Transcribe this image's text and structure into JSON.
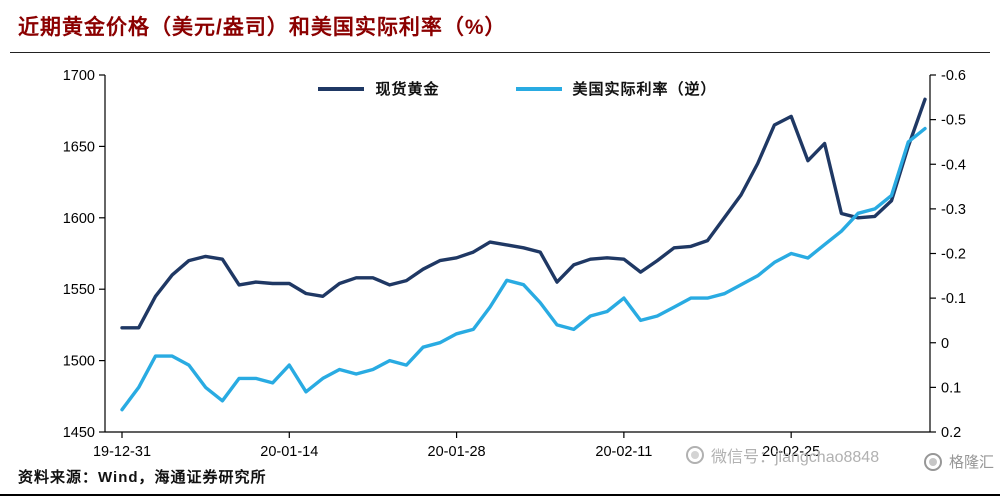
{
  "page": {
    "title": "近期黄金价格（美元/盎司）和美国实际利率（%）",
    "source": "资料来源：Wind，海通证券研究所"
  },
  "watermark": {
    "wechat_label": "微信号：jiangchao8848",
    "brand_label": "格隆汇"
  },
  "colors": {
    "title": "#8b0000",
    "gold_line": "#1f3864",
    "rate_line": "#29abe2",
    "axis": "#000000",
    "watermark": "#b1b1b1"
  },
  "chart_data": {
    "type": "line",
    "title": "近期黄金价格（美元/盎司）和美国实际利率（%）",
    "grid": false,
    "legend_position": "top-center",
    "x_axis": {
      "tick_labels": [
        "19-12-31",
        "20-01-14",
        "20-01-28",
        "20-02-11",
        "20-02-25"
      ],
      "tick_indices": [
        0,
        10,
        20,
        30,
        40
      ]
    },
    "y_left": {
      "min": 1450,
      "max": 1700,
      "tick_labels": [
        "1700",
        "1650",
        "1600",
        "1550",
        "1500",
        "1450"
      ]
    },
    "y_right": {
      "inverted": true,
      "top": -0.6,
      "bottom": 0.2,
      "tick_labels": [
        "-0.6",
        "-0.5",
        "-0.4",
        "-0.3",
        "-0.2",
        "-0.1",
        "0",
        "0.1",
        "0.2"
      ]
    },
    "series": [
      {
        "name": "现货黄金",
        "axis": "left",
        "color": "#1f3864",
        "values": [
          1523,
          1523,
          1545,
          1560,
          1570,
          1573,
          1571,
          1553,
          1555,
          1554,
          1554,
          1547,
          1545,
          1554,
          1558,
          1558,
          1553,
          1556,
          1564,
          1570,
          1572,
          1576,
          1583,
          1581,
          1579,
          1576,
          1555,
          1567,
          1571,
          1572,
          1571,
          1562,
          1570,
          1579,
          1580,
          1584,
          1600,
          1616,
          1638,
          1665,
          1671,
          1640,
          1652,
          1603,
          1600,
          1601,
          1612,
          1650,
          1683
        ]
      },
      {
        "name": "美国实际利率（逆）",
        "axis": "right",
        "color": "#29abe2",
        "values": [
          0.15,
          0.1,
          0.03,
          0.03,
          0.05,
          0.1,
          0.13,
          0.08,
          0.08,
          0.09,
          0.05,
          0.11,
          0.08,
          0.06,
          0.07,
          0.06,
          0.04,
          0.05,
          0.01,
          0,
          -0.02,
          -0.03,
          -0.08,
          -0.14,
          -0.13,
          -0.09,
          -0.04,
          -0.03,
          -0.06,
          -0.07,
          -0.1,
          -0.05,
          -0.06,
          -0.08,
          -0.1,
          -0.1,
          -0.11,
          -0.13,
          -0.15,
          -0.18,
          -0.2,
          -0.19,
          -0.22,
          -0.25,
          -0.29,
          -0.3,
          -0.33,
          -0.45,
          -0.48
        ]
      }
    ]
  }
}
